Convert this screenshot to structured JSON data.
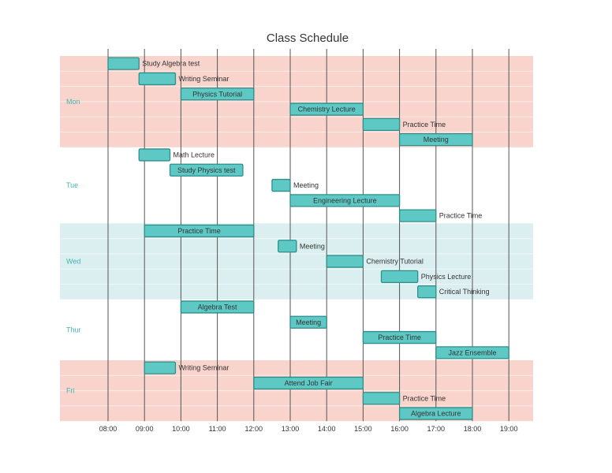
{
  "chart_data": {
    "type": "gantt",
    "title": "Class Schedule",
    "xlabel": "",
    "ylabel": "",
    "x_ticks": [
      "08:00",
      "09:00",
      "10:00",
      "11:00",
      "12:00",
      "13:00",
      "14:00",
      "15:00",
      "16:00",
      "17:00",
      "18:00",
      "19:00"
    ],
    "x_range_hours": [
      7,
      20
    ],
    "colors": {
      "bar_fill": "#5ec8c5",
      "bar_stroke": "#2f8f8a",
      "band_pink": "#f8d4cc",
      "band_teal": "#dceff0",
      "day_label": "#3fb3b0",
      "vline": "#555555"
    },
    "days": [
      {
        "name": "Mon",
        "band": "pink",
        "tasks": [
          {
            "label": "Study Algebra test",
            "start": 8.0,
            "end": 8.85,
            "label_pos": "right"
          },
          {
            "label": "Writing Seminar",
            "start": 8.85,
            "end": 9.85,
            "label_pos": "right"
          },
          {
            "label": "Physics Tutorial",
            "start": 10.0,
            "end": 12.0,
            "label_pos": "inside"
          },
          {
            "label": "Chemistry Lecture",
            "start": 13.0,
            "end": 15.0,
            "label_pos": "inside"
          },
          {
            "label": "Practice Time",
            "start": 15.0,
            "end": 16.0,
            "label_pos": "right"
          },
          {
            "label": "Meeting",
            "start": 16.0,
            "end": 18.0,
            "label_pos": "inside"
          }
        ]
      },
      {
        "name": "Tue",
        "band": "none",
        "tasks": [
          {
            "label": "Math Lecture",
            "start": 8.85,
            "end": 9.7,
            "label_pos": "right"
          },
          {
            "label": "Study Physics test",
            "start": 9.7,
            "end": 11.7,
            "label_pos": "inside"
          },
          {
            "label": "Meeting",
            "start": 12.5,
            "end": 13.0,
            "label_pos": "right"
          },
          {
            "label": "Engineering Lecture",
            "start": 13.0,
            "end": 16.0,
            "label_pos": "inside"
          },
          {
            "label": "Practice Time",
            "start": 16.0,
            "end": 17.0,
            "label_pos": "right"
          }
        ]
      },
      {
        "name": "Wed",
        "band": "teal",
        "tasks": [
          {
            "label": "Practice Time",
            "start": 9.0,
            "end": 12.0,
            "label_pos": "inside"
          },
          {
            "label": "Meeting",
            "start": 12.67,
            "end": 13.17,
            "label_pos": "right"
          },
          {
            "label": "Chemistry Tutorial",
            "start": 14.0,
            "end": 15.0,
            "label_pos": "right"
          },
          {
            "label": "Physics Lecture",
            "start": 15.5,
            "end": 16.5,
            "label_pos": "right"
          },
          {
            "label": "Critical Thinking",
            "start": 16.5,
            "end": 17.0,
            "label_pos": "right"
          }
        ]
      },
      {
        "name": "Thur",
        "band": "none",
        "tasks": [
          {
            "label": "Algebra Test",
            "start": 10.0,
            "end": 12.0,
            "label_pos": "inside"
          },
          {
            "label": "Meeting",
            "start": 13.0,
            "end": 14.0,
            "label_pos": "inside"
          },
          {
            "label": "Practice Time",
            "start": 15.0,
            "end": 17.0,
            "label_pos": "inside"
          },
          {
            "label": "Jazz Ensemble",
            "start": 17.0,
            "end": 19.0,
            "label_pos": "inside"
          }
        ]
      },
      {
        "name": "Fri",
        "band": "pink",
        "tasks": [
          {
            "label": "Writing Seminar",
            "start": 9.0,
            "end": 9.85,
            "label_pos": "right"
          },
          {
            "label": "Attend Job Fair",
            "start": 12.0,
            "end": 15.0,
            "label_pos": "inside"
          },
          {
            "label": "Practice Time",
            "start": 15.0,
            "end": 16.0,
            "label_pos": "right"
          },
          {
            "label": "Algebra Lecture",
            "start": 16.0,
            "end": 18.0,
            "label_pos": "inside"
          }
        ]
      }
    ]
  }
}
